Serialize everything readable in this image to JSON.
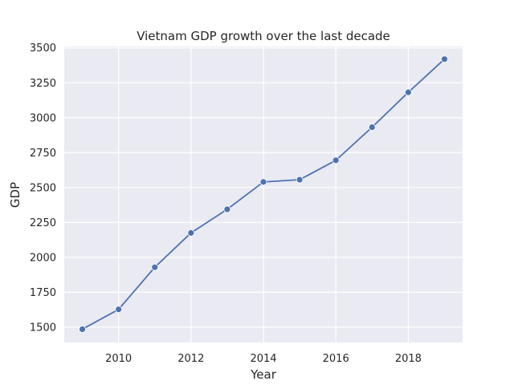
{
  "chart_data": {
    "type": "line",
    "title": "Vietnam GDP growth over the last decade",
    "xlabel": "Year",
    "ylabel": "GDP",
    "x": [
      2009,
      2010,
      2011,
      2012,
      2013,
      2014,
      2015,
      2016,
      2017,
      2018,
      2019
    ],
    "series": [
      {
        "name": "",
        "values": [
          1485,
          1627,
          1929,
          2175,
          2344,
          2540,
          2556,
          2695,
          2932,
          3182,
          3420
        ]
      }
    ],
    "xlim": [
      2008.5,
      2019.5
    ],
    "ylim": [
      1390,
      3510
    ],
    "xticks": [
      2010,
      2012,
      2014,
      2016,
      2018
    ],
    "yticks": [
      1500,
      1750,
      2000,
      2250,
      2500,
      2750,
      3000,
      3250,
      3500
    ],
    "grid": true,
    "legend": "none",
    "colors": {
      "line": "#4c72b0",
      "background": "#eaeaf2",
      "grid": "#ffffff"
    }
  }
}
